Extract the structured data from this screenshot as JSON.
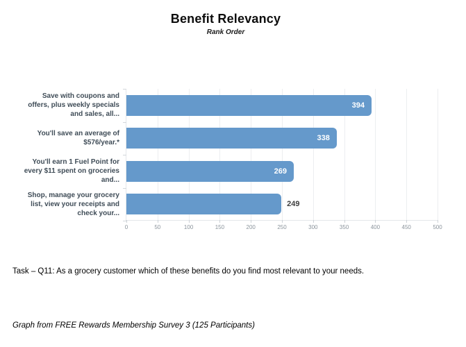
{
  "title": "Benefit Relevancy",
  "subtitle": "Rank Order",
  "chart_data": {
    "type": "bar",
    "orientation": "horizontal",
    "title": "Benefit Relevancy",
    "subtitle": "Rank Order",
    "categories": [
      "Save with coupons and\noffers, plus weekly specials\nand sales, all...",
      "You'll save an average of\n$576/year.*",
      "You'll earn 1 Fuel Point for\nevery $11 spent on groceries\nand...",
      "Shop, manage your grocery\nlist, view your receipts and\ncheck your..."
    ],
    "values": [
      394,
      338,
      269,
      249
    ],
    "value_label_position": [
      "inside",
      "inside",
      "inside",
      "outside"
    ],
    "xlim": [
      0,
      500
    ],
    "x_ticks": [
      0,
      50,
      100,
      150,
      200,
      250,
      300,
      350,
      400,
      450,
      500
    ],
    "grid": true,
    "legend": false,
    "bar_color": "#6599cb",
    "value_label_inside_color": "#ffffff",
    "value_label_outside_color": "#3d3d3d"
  },
  "task_text": "Task – Q11: As a grocery customer which of these benefits do you find most relevant to your needs.",
  "source_text": "Graph from FREE Rewards Membership Survey 3 (125 Participants)"
}
